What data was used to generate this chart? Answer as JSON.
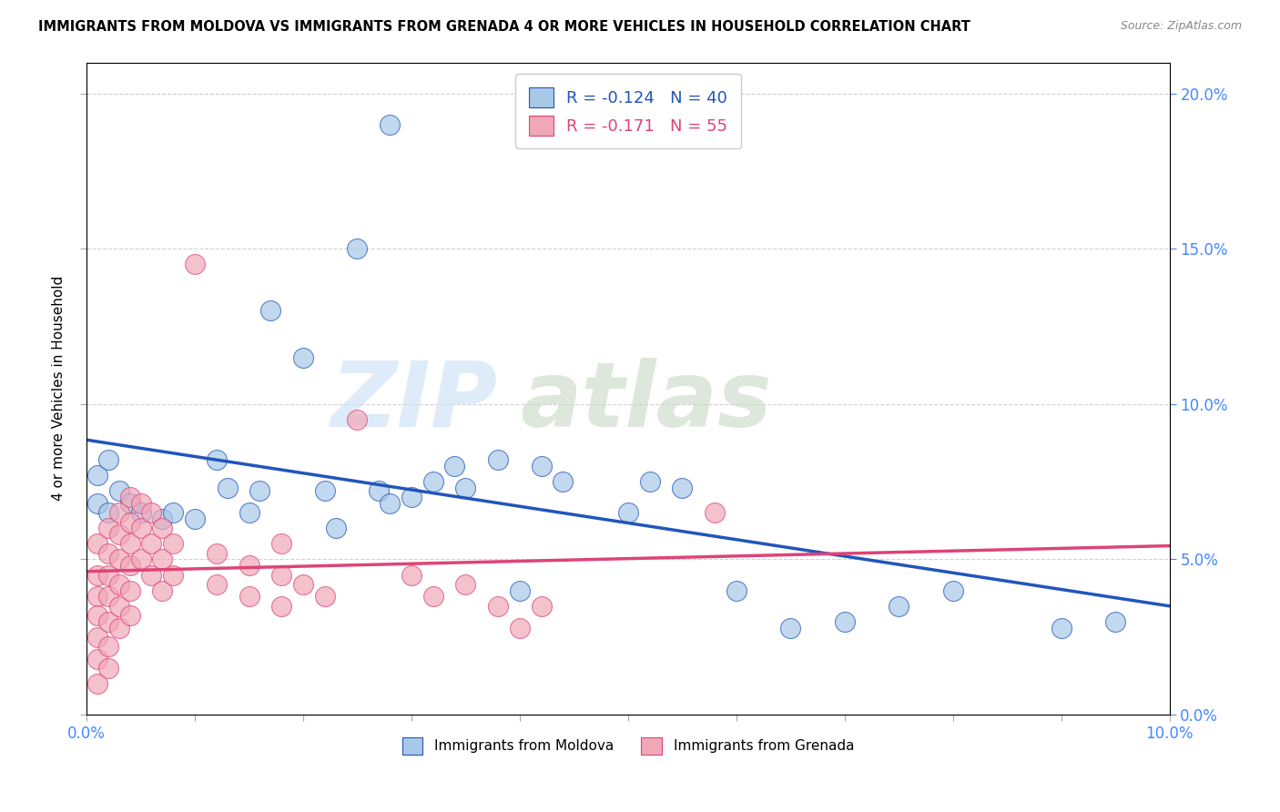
{
  "title": "IMMIGRANTS FROM MOLDOVA VS IMMIGRANTS FROM GRENADA 4 OR MORE VEHICLES IN HOUSEHOLD CORRELATION CHART",
  "source": "Source: ZipAtlas.com",
  "ylabel": "4 or more Vehicles in Household",
  "legend_moldova": "R = -0.124   N = 40",
  "legend_grenada": "R = -0.171   N = 55",
  "legend_label_moldova": "Immigrants from Moldova",
  "legend_label_grenada": "Immigrants from Grenada",
  "moldova_color": "#a8c8e8",
  "grenada_color": "#f0a8b8",
  "trend_moldova_color": "#2255bb",
  "trend_grenada_color": "#dd4477",
  "moldova_scatter": [
    [
      0.001,
      0.077
    ],
    [
      0.002,
      0.082
    ],
    [
      0.001,
      0.068
    ],
    [
      0.002,
      0.065
    ],
    [
      0.003,
      0.072
    ],
    [
      0.004,
      0.068
    ],
    [
      0.005,
      0.065
    ],
    [
      0.007,
      0.063
    ],
    [
      0.008,
      0.065
    ],
    [
      0.01,
      0.063
    ],
    [
      0.012,
      0.082
    ],
    [
      0.013,
      0.073
    ],
    [
      0.015,
      0.065
    ],
    [
      0.016,
      0.072
    ],
    [
      0.017,
      0.13
    ],
    [
      0.02,
      0.115
    ],
    [
      0.022,
      0.072
    ],
    [
      0.023,
      0.06
    ],
    [
      0.025,
      0.15
    ],
    [
      0.027,
      0.072
    ],
    [
      0.028,
      0.068
    ],
    [
      0.03,
      0.07
    ],
    [
      0.032,
      0.075
    ],
    [
      0.028,
      0.19
    ],
    [
      0.034,
      0.08
    ],
    [
      0.035,
      0.073
    ],
    [
      0.038,
      0.082
    ],
    [
      0.04,
      0.04
    ],
    [
      0.042,
      0.08
    ],
    [
      0.044,
      0.075
    ],
    [
      0.05,
      0.065
    ],
    [
      0.052,
      0.075
    ],
    [
      0.055,
      0.073
    ],
    [
      0.06,
      0.04
    ],
    [
      0.065,
      0.028
    ],
    [
      0.07,
      0.03
    ],
    [
      0.075,
      0.035
    ],
    [
      0.08,
      0.04
    ],
    [
      0.09,
      0.028
    ],
    [
      0.095,
      0.03
    ]
  ],
  "grenada_scatter": [
    [
      0.001,
      0.055
    ],
    [
      0.001,
      0.045
    ],
    [
      0.001,
      0.038
    ],
    [
      0.001,
      0.032
    ],
    [
      0.001,
      0.025
    ],
    [
      0.001,
      0.018
    ],
    [
      0.001,
      0.01
    ],
    [
      0.002,
      0.06
    ],
    [
      0.002,
      0.052
    ],
    [
      0.002,
      0.045
    ],
    [
      0.002,
      0.038
    ],
    [
      0.002,
      0.03
    ],
    [
      0.002,
      0.022
    ],
    [
      0.002,
      0.015
    ],
    [
      0.003,
      0.065
    ],
    [
      0.003,
      0.058
    ],
    [
      0.003,
      0.05
    ],
    [
      0.003,
      0.042
    ],
    [
      0.003,
      0.035
    ],
    [
      0.003,
      0.028
    ],
    [
      0.004,
      0.07
    ],
    [
      0.004,
      0.062
    ],
    [
      0.004,
      0.055
    ],
    [
      0.004,
      0.048
    ],
    [
      0.004,
      0.04
    ],
    [
      0.004,
      0.032
    ],
    [
      0.005,
      0.068
    ],
    [
      0.005,
      0.06
    ],
    [
      0.005,
      0.05
    ],
    [
      0.006,
      0.065
    ],
    [
      0.006,
      0.055
    ],
    [
      0.006,
      0.045
    ],
    [
      0.007,
      0.06
    ],
    [
      0.007,
      0.05
    ],
    [
      0.007,
      0.04
    ],
    [
      0.008,
      0.055
    ],
    [
      0.008,
      0.045
    ],
    [
      0.01,
      0.145
    ],
    [
      0.012,
      0.052
    ],
    [
      0.012,
      0.042
    ],
    [
      0.015,
      0.048
    ],
    [
      0.015,
      0.038
    ],
    [
      0.018,
      0.055
    ],
    [
      0.018,
      0.045
    ],
    [
      0.018,
      0.035
    ],
    [
      0.02,
      0.042
    ],
    [
      0.022,
      0.038
    ],
    [
      0.025,
      0.095
    ],
    [
      0.03,
      0.045
    ],
    [
      0.032,
      0.038
    ],
    [
      0.035,
      0.042
    ],
    [
      0.038,
      0.035
    ],
    [
      0.04,
      0.028
    ],
    [
      0.042,
      0.035
    ],
    [
      0.058,
      0.065
    ]
  ],
  "xlim": [
    0.0,
    0.1
  ],
  "ylim": [
    0.0,
    0.21
  ],
  "yticks": [
    0.0,
    0.05,
    0.1,
    0.15,
    0.2
  ],
  "xtick_positions": [
    0.0,
    0.01,
    0.02,
    0.03,
    0.04,
    0.05,
    0.06,
    0.07,
    0.08,
    0.09,
    0.1
  ]
}
